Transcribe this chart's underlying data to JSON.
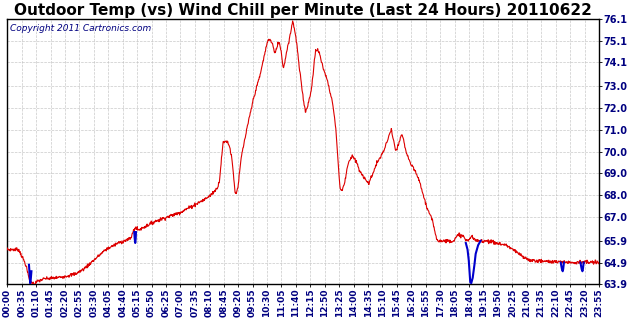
{
  "title": "Outdoor Temp (vs) Wind Chill per Minute (Last 24 Hours) 20110622",
  "copyright_text": "Copyright 2011 Cartronics.com",
  "ylim": [
    63.9,
    76.1
  ],
  "yticks": [
    63.9,
    64.9,
    65.9,
    67.0,
    68.0,
    69.0,
    70.0,
    71.0,
    72.0,
    73.0,
    74.1,
    75.1,
    76.1
  ],
  "ytick_labels": [
    "63.9",
    "64.9",
    "65.9",
    "67.0",
    "68.0",
    "69.0",
    "70.0",
    "71.0",
    "72.0",
    "73.0",
    "74.1",
    "75.1",
    "76.1"
  ],
  "background_color": "#ffffff",
  "grid_color": "#bbbbbb",
  "line_color_red": "#dd0000",
  "line_color_blue": "#0000cc",
  "title_fontsize": 11,
  "tick_fontsize": 7,
  "copyright_fontsize": 6.5,
  "xtick_labels": [
    "00:00",
    "00:35",
    "01:10",
    "01:45",
    "02:20",
    "02:55",
    "03:30",
    "04:05",
    "04:40",
    "05:15",
    "05:50",
    "06:25",
    "07:00",
    "07:35",
    "08:10",
    "08:45",
    "09:20",
    "09:55",
    "10:30",
    "11:05",
    "11:40",
    "12:15",
    "12:50",
    "13:25",
    "14:00",
    "14:35",
    "15:10",
    "15:45",
    "16:20",
    "16:55",
    "17:30",
    "18:05",
    "18:40",
    "19:15",
    "19:50",
    "20:25",
    "21:00",
    "21:35",
    "22:10",
    "22:45",
    "23:20",
    "23:55"
  ],
  "keypoints_red": [
    [
      0.0,
      65.5
    ],
    [
      0.45,
      65.5
    ],
    [
      0.55,
      65.3
    ],
    [
      0.75,
      64.8
    ],
    [
      0.92,
      64.0
    ],
    [
      1.08,
      63.92
    ],
    [
      1.25,
      64.05
    ],
    [
      1.5,
      64.15
    ],
    [
      2.0,
      64.2
    ],
    [
      2.5,
      64.3
    ],
    [
      2.8,
      64.4
    ],
    [
      3.1,
      64.6
    ],
    [
      3.5,
      65.0
    ],
    [
      4.0,
      65.5
    ],
    [
      4.5,
      65.8
    ],
    [
      5.0,
      66.0
    ],
    [
      5.17,
      66.5
    ],
    [
      5.33,
      66.4
    ],
    [
      5.5,
      66.5
    ],
    [
      5.67,
      66.6
    ],
    [
      5.83,
      66.7
    ],
    [
      6.0,
      66.8
    ],
    [
      6.25,
      66.9
    ],
    [
      6.5,
      67.0
    ],
    [
      6.75,
      67.1
    ],
    [
      7.0,
      67.2
    ],
    [
      7.25,
      67.35
    ],
    [
      7.5,
      67.5
    ],
    [
      7.75,
      67.65
    ],
    [
      8.0,
      67.8
    ],
    [
      8.25,
      68.0
    ],
    [
      8.5,
      68.3
    ],
    [
      8.6,
      68.6
    ],
    [
      8.75,
      70.4
    ],
    [
      8.9,
      70.5
    ],
    [
      9.0,
      70.3
    ],
    [
      9.1,
      69.8
    ],
    [
      9.25,
      68.05
    ],
    [
      9.35,
      68.3
    ],
    [
      9.5,
      69.8
    ],
    [
      9.75,
      71.2
    ],
    [
      10.0,
      72.5
    ],
    [
      10.25,
      73.5
    ],
    [
      10.5,
      74.8
    ],
    [
      10.6,
      75.2
    ],
    [
      10.75,
      75.0
    ],
    [
      10.85,
      74.5
    ],
    [
      10.95,
      74.8
    ],
    [
      11.0,
      75.1
    ],
    [
      11.1,
      74.7
    ],
    [
      11.2,
      73.8
    ],
    [
      11.35,
      74.7
    ],
    [
      11.5,
      75.5
    ],
    [
      11.58,
      76.05
    ],
    [
      11.67,
      75.5
    ],
    [
      11.75,
      74.9
    ],
    [
      11.83,
      74.0
    ],
    [
      11.92,
      73.2
    ],
    [
      12.0,
      72.5
    ],
    [
      12.1,
      71.8
    ],
    [
      12.25,
      72.4
    ],
    [
      12.33,
      72.8
    ],
    [
      12.5,
      74.6
    ],
    [
      12.58,
      74.7
    ],
    [
      12.67,
      74.5
    ],
    [
      12.75,
      74.1
    ],
    [
      12.83,
      73.8
    ],
    [
      12.92,
      73.5
    ],
    [
      13.0,
      73.2
    ],
    [
      13.08,
      72.8
    ],
    [
      13.17,
      72.4
    ],
    [
      13.25,
      71.8
    ],
    [
      13.33,
      71.0
    ],
    [
      13.42,
      69.5
    ],
    [
      13.5,
      68.3
    ],
    [
      13.58,
      68.2
    ],
    [
      13.67,
      68.5
    ],
    [
      13.75,
      69.0
    ],
    [
      13.83,
      69.5
    ],
    [
      14.0,
      69.8
    ],
    [
      14.17,
      69.5
    ],
    [
      14.33,
      69.0
    ],
    [
      14.5,
      68.8
    ],
    [
      14.67,
      68.5
    ],
    [
      14.75,
      68.8
    ],
    [
      14.83,
      69.0
    ],
    [
      15.0,
      69.5
    ],
    [
      15.17,
      69.8
    ],
    [
      15.33,
      70.2
    ],
    [
      15.5,
      70.8
    ],
    [
      15.58,
      71.0
    ],
    [
      15.67,
      70.5
    ],
    [
      15.75,
      70.0
    ],
    [
      15.83,
      70.2
    ],
    [
      15.92,
      70.5
    ],
    [
      16.0,
      70.8
    ],
    [
      16.08,
      70.5
    ],
    [
      16.17,
      70.0
    ],
    [
      16.25,
      69.8
    ],
    [
      16.33,
      69.5
    ],
    [
      16.42,
      69.3
    ],
    [
      16.5,
      69.2
    ],
    [
      16.58,
      69.0
    ],
    [
      16.67,
      68.8
    ],
    [
      16.75,
      68.5
    ],
    [
      16.83,
      68.2
    ],
    [
      17.0,
      67.5
    ],
    [
      17.25,
      66.8
    ],
    [
      17.42,
      66.0
    ],
    [
      17.5,
      65.9
    ],
    [
      17.67,
      65.9
    ],
    [
      17.75,
      65.9
    ],
    [
      18.0,
      65.9
    ],
    [
      18.1,
      65.9
    ],
    [
      18.25,
      66.1
    ],
    [
      18.33,
      66.2
    ],
    [
      18.5,
      66.1
    ],
    [
      18.58,
      65.95
    ],
    [
      18.67,
      65.9
    ],
    [
      18.75,
      66.0
    ],
    [
      18.83,
      66.1
    ],
    [
      18.92,
      66.0
    ],
    [
      19.0,
      65.9
    ],
    [
      19.17,
      65.9
    ],
    [
      19.33,
      65.9
    ],
    [
      19.5,
      65.9
    ],
    [
      19.67,
      65.85
    ],
    [
      19.83,
      65.8
    ],
    [
      20.0,
      65.75
    ],
    [
      20.25,
      65.7
    ],
    [
      20.5,
      65.5
    ],
    [
      20.75,
      65.3
    ],
    [
      21.0,
      65.1
    ],
    [
      21.25,
      65.0
    ],
    [
      21.5,
      64.98
    ],
    [
      21.75,
      64.96
    ],
    [
      22.0,
      64.95
    ],
    [
      22.25,
      64.93
    ],
    [
      22.5,
      64.92
    ],
    [
      22.58,
      64.95
    ],
    [
      22.67,
      64.93
    ],
    [
      22.75,
      64.92
    ],
    [
      23.0,
      64.91
    ],
    [
      23.25,
      64.92
    ],
    [
      23.5,
      64.91
    ],
    [
      23.75,
      64.9
    ],
    [
      24.0,
      64.9
    ]
  ],
  "blue_segments": [
    {
      "t0": 0.88,
      "t1": 0.98,
      "values": [
        [
          0.88,
          64.8
        ],
        [
          0.91,
          64.3
        ],
        [
          0.93,
          63.95
        ],
        [
          0.95,
          64.1
        ],
        [
          0.98,
          64.5
        ]
      ]
    },
    {
      "t0": 5.15,
      "t1": 5.22,
      "values": [
        [
          5.15,
          66.3
        ],
        [
          5.17,
          66.0
        ],
        [
          5.19,
          65.8
        ],
        [
          5.21,
          66.0
        ],
        [
          5.22,
          66.3
        ]
      ]
    },
    {
      "t0": 18.6,
      "t1": 19.2,
      "values": [
        [
          18.6,
          65.8
        ],
        [
          18.67,
          65.5
        ],
        [
          18.72,
          65.0
        ],
        [
          18.75,
          64.5
        ],
        [
          18.78,
          64.0
        ],
        [
          18.82,
          63.95
        ],
        [
          18.88,
          64.2
        ],
        [
          18.95,
          64.8
        ],
        [
          19.0,
          65.3
        ],
        [
          19.1,
          65.7
        ],
        [
          19.2,
          65.9
        ]
      ]
    },
    {
      "t0": 22.45,
      "t1": 22.58,
      "values": [
        [
          22.45,
          64.9
        ],
        [
          22.5,
          64.6
        ],
        [
          22.53,
          64.5
        ],
        [
          22.55,
          64.6
        ],
        [
          22.58,
          64.9
        ]
      ]
    },
    {
      "t0": 23.25,
      "t1": 23.38,
      "values": [
        [
          23.25,
          64.9
        ],
        [
          23.3,
          64.6
        ],
        [
          23.33,
          64.5
        ],
        [
          23.35,
          64.6
        ],
        [
          23.38,
          64.9
        ]
      ]
    }
  ]
}
